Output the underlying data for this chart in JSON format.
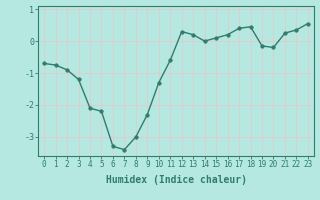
{
  "x": [
    0,
    1,
    2,
    3,
    4,
    5,
    6,
    7,
    8,
    9,
    10,
    11,
    12,
    13,
    14,
    15,
    16,
    17,
    18,
    19,
    20,
    21,
    22,
    23
  ],
  "y": [
    -0.7,
    -0.75,
    -0.9,
    -1.2,
    -2.1,
    -2.2,
    -3.3,
    -3.4,
    -3.0,
    -2.3,
    -1.3,
    -0.6,
    0.3,
    0.2,
    0.0,
    0.1,
    0.2,
    0.4,
    0.45,
    -0.15,
    -0.2,
    0.25,
    0.35,
    0.55
  ],
  "line_color": "#2e7d6e",
  "marker_size": 2.5,
  "bg_color": "#b5e8e0",
  "grid_color": "#e8c8c8",
  "xlabel": "Humidex (Indice chaleur)",
  "ylim": [
    -3.6,
    1.1
  ],
  "xlim": [
    -0.5,
    23.5
  ],
  "yticks": [
    -3,
    -2,
    -1,
    0,
    1
  ],
  "xticks": [
    0,
    1,
    2,
    3,
    4,
    5,
    6,
    7,
    8,
    9,
    10,
    11,
    12,
    13,
    14,
    15,
    16,
    17,
    18,
    19,
    20,
    21,
    22,
    23
  ],
  "tick_color": "#2e7d6e",
  "label_color": "#2e7d6e",
  "spine_color": "#2e7d6e",
  "tick_fontsize": 5.5,
  "xlabel_fontsize": 7.0
}
